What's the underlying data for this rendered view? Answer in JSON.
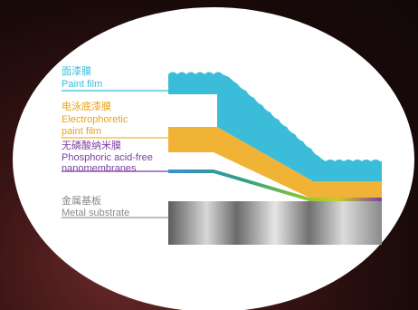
{
  "layers": [
    {
      "key": "paint",
      "label_cn": "面漆膜",
      "label_en_lines": [
        "Paint film"
      ],
      "color": "#3bbcd8"
    },
    {
      "key": "electro",
      "label_cn": "电泳底漆膜",
      "label_en_lines": [
        "Electrophoretic",
        "paint film"
      ],
      "color": "#f0b336"
    },
    {
      "key": "nano",
      "label_cn": "无磷酸纳米膜",
      "label_en_lines": [
        "Phosphoric acid-free",
        "nanomembranes"
      ],
      "color": "#7b3fa0"
    },
    {
      "key": "metal",
      "label_cn": "金属基板",
      "label_en_lines": [
        "Metal substrate"
      ],
      "color": "#9a9a9a"
    }
  ],
  "colors": {
    "background": "#2a0f0f",
    "ellipse": "#ffffff",
    "paint_text": "#3bbcd8",
    "electro_text": "#e8a21e",
    "nano_text": "#7b3fa0",
    "metal_text": "#8a8a8a"
  }
}
